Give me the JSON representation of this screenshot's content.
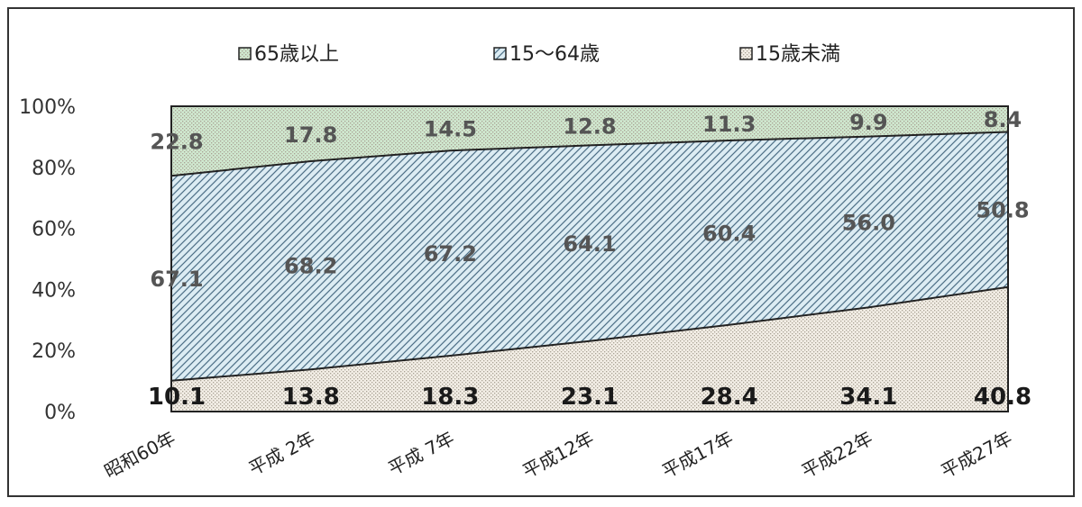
{
  "chart_data": {
    "type": "area",
    "stacked": "percent",
    "title": "",
    "xlabel": "",
    "ylabel": "",
    "ylim": [
      0,
      100
    ],
    "grid": false,
    "legend_position": "top",
    "categories": [
      "昭和60年",
      "平成 2年",
      "平成 7年",
      "平成12年",
      "平成17年",
      "平成22年",
      "平成27年"
    ],
    "y_ticks": [
      "0%",
      "20%",
      "40%",
      "60%",
      "80%",
      "100%"
    ],
    "series": [
      {
        "name": "15歳未満",
        "values": [
          10.1,
          13.8,
          18.3,
          23.1,
          28.4,
          34.1,
          40.8
        ],
        "labels": [
          "10.1",
          "13.8",
          "18.3",
          "23.1",
          "28.4",
          "34.1",
          "40.8"
        ],
        "fill": "#f3eee6",
        "pattern": "dots"
      },
      {
        "name": "15～64歳",
        "values": [
          67.1,
          68.2,
          67.2,
          64.1,
          60.4,
          56.0,
          50.8
        ],
        "labels": [
          "67.1",
          "68.2",
          "67.2",
          "64.1",
          "60.4",
          "56.0",
          "50.8"
        ],
        "fill": "#dcecf3",
        "pattern": "diagonal"
      },
      {
        "name": "65歳以上",
        "values": [
          22.8,
          17.8,
          14.5,
          12.8,
          11.3,
          9.9,
          8.4
        ],
        "labels": [
          "22.8",
          "17.8",
          "14.5",
          "12.8",
          "11.3",
          "9.9",
          "8.4"
        ],
        "fill": "#cfe8cf",
        "pattern": "dots"
      }
    ],
    "legend": [
      {
        "name": "65歳以上",
        "series_index": 2
      },
      {
        "name": "15～64歳",
        "series_index": 1
      },
      {
        "name": "15歳未満",
        "series_index": 0
      }
    ]
  }
}
